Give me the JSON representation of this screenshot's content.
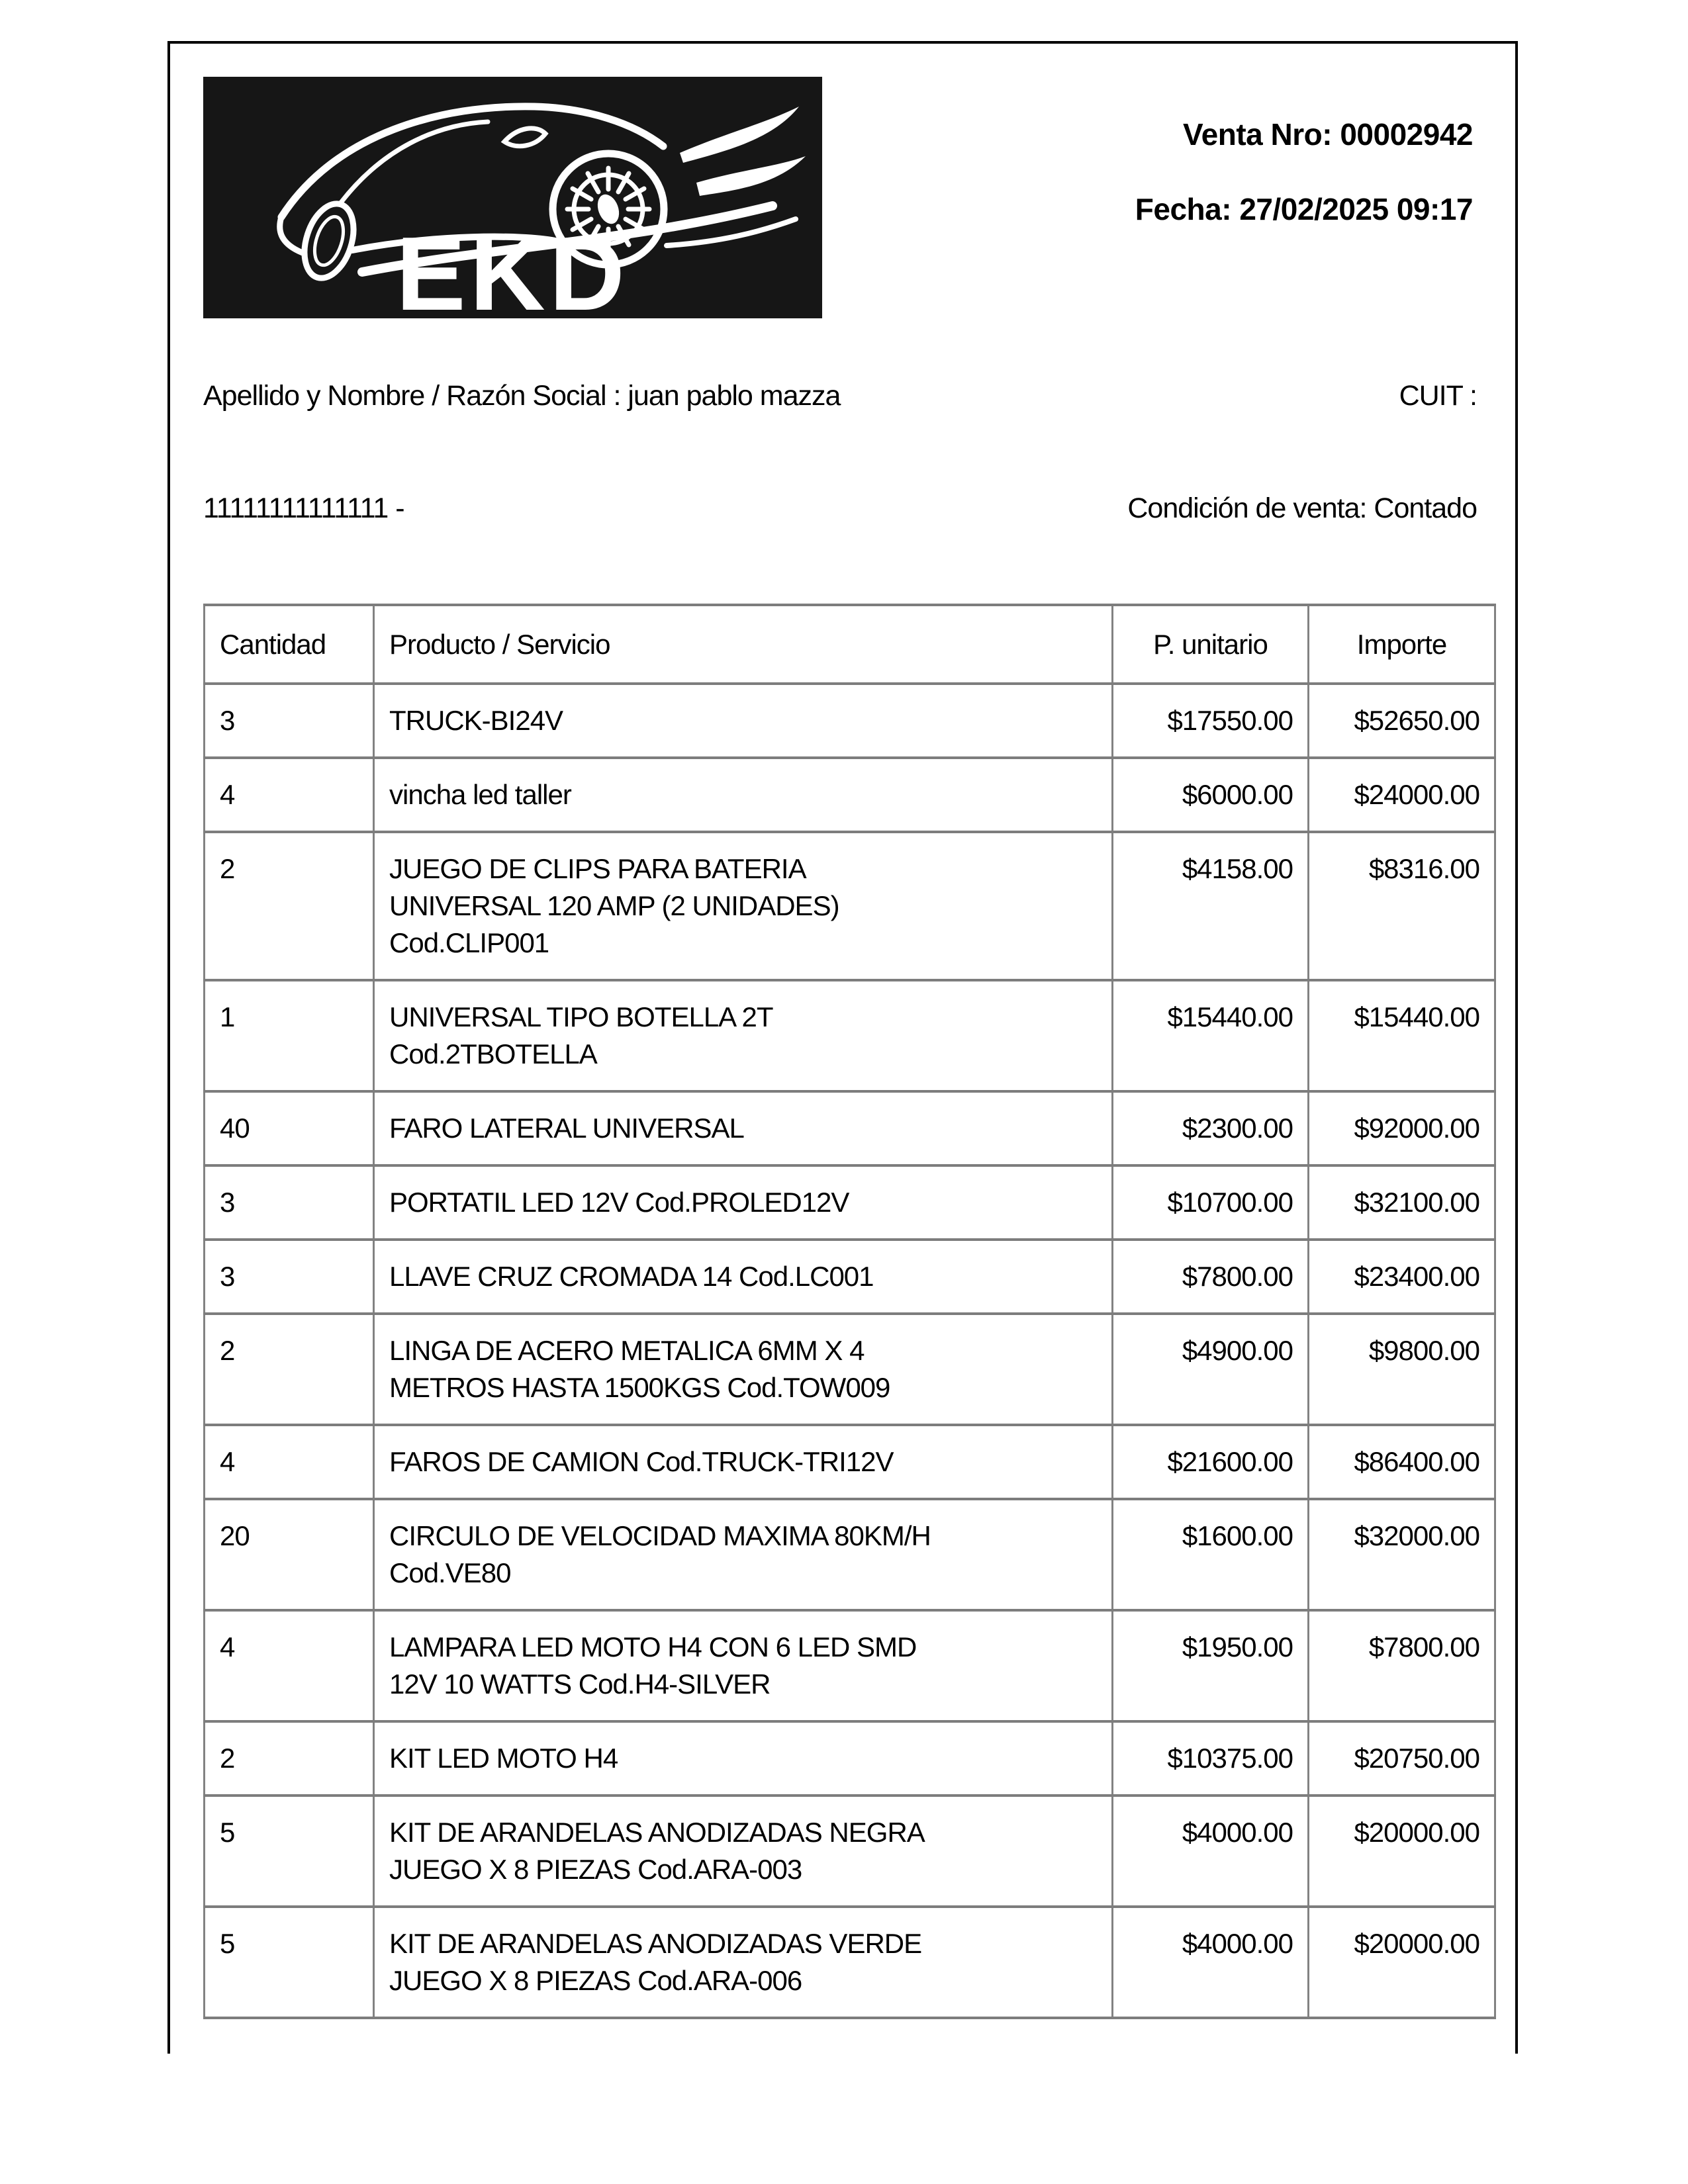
{
  "page": {
    "logo": {
      "text": "EKD",
      "bg_color": "#161616",
      "art_color": "#ffffff"
    },
    "meta": {
      "sale_number": "Venta Nro: 00002942",
      "date": "Fecha: 27/02/2025 09:17"
    },
    "customer": {
      "name_line": "Apellido y Nombre / Razón Social : juan pablo mazza",
      "cuit_label": "CUIT :",
      "cuit_value": "11111111111111 -",
      "sale_condition": "Condición de venta: Contado"
    },
    "items_table": {
      "headers": [
        "Cantidad",
        "Producto / Servicio",
        "P. unitario",
        "Importe"
      ],
      "rows": [
        {
          "qty": "3",
          "product": "TRUCK-BI24V",
          "unit": "$17550.00",
          "amount": "$52650.00"
        },
        {
          "qty": "4",
          "product": "vincha led taller",
          "unit": "$6000.00",
          "amount": "$24000.00"
        },
        {
          "qty": "2",
          "product": "JUEGO DE CLIPS PARA BATERIA\nUNIVERSAL 120 AMP (2 UNIDADES)\nCod.CLIP001",
          "unit": "$4158.00",
          "amount": "$8316.00"
        },
        {
          "qty": "1",
          "product": "UNIVERSAL TIPO BOTELLA 2T\nCod.2TBOTELLA",
          "unit": "$15440.00",
          "amount": "$15440.00"
        },
        {
          "qty": "40",
          "product": "FARO LATERAL UNIVERSAL",
          "unit": "$2300.00",
          "amount": "$92000.00"
        },
        {
          "qty": "3",
          "product": "PORTATIL LED 12V Cod.PROLED12V",
          "unit": "$10700.00",
          "amount": "$32100.00"
        },
        {
          "qty": "3",
          "product": "LLAVE CRUZ CROMADA 14 Cod.LC001",
          "unit": "$7800.00",
          "amount": "$23400.00"
        },
        {
          "qty": "2",
          "product": "LINGA DE ACERO METALICA 6MM X 4\nMETROS HASTA 1500KGS Cod.TOW009",
          "unit": "$4900.00",
          "amount": "$9800.00"
        },
        {
          "qty": "4",
          "product": "FAROS DE CAMION Cod.TRUCK-TRI12V",
          "unit": "$21600.00",
          "amount": "$86400.00"
        },
        {
          "qty": "20",
          "product": "CIRCULO DE VELOCIDAD MAXIMA 80KM/H\nCod.VE80",
          "unit": "$1600.00",
          "amount": "$32000.00"
        },
        {
          "qty": "4",
          "product": "LAMPARA LED MOTO H4 CON 6 LED SMD\n12V 10 WATTS Cod.H4-SILVER",
          "unit": "$1950.00",
          "amount": "$7800.00"
        },
        {
          "qty": "2",
          "product": "KIT LED MOTO H4",
          "unit": "$10375.00",
          "amount": "$20750.00"
        },
        {
          "qty": "5",
          "product": "KIT DE ARANDELAS ANODIZADAS NEGRA\nJUEGO X 8 PIEZAS Cod.ARA-003",
          "unit": "$4000.00",
          "amount": "$20000.00"
        },
        {
          "qty": "5",
          "product": "KIT DE ARANDELAS ANODIZADAS VERDE\nJUEGO X 8 PIEZAS Cod.ARA-006",
          "unit": "$4000.00",
          "amount": "$20000.00"
        }
      ]
    },
    "colors": {
      "frame_border": "#000000",
      "table_border": "#808080",
      "text": "#000000",
      "background": "#ffffff"
    }
  }
}
